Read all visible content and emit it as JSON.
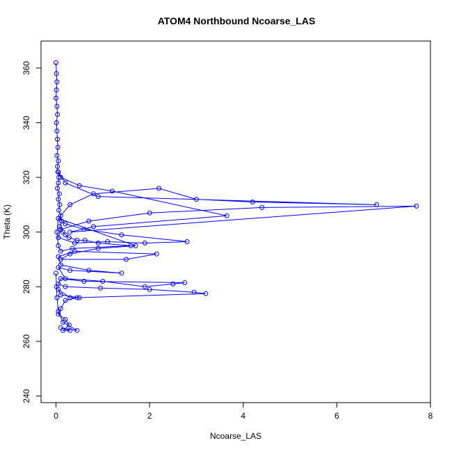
{
  "chart_data": {
    "type": "line",
    "title": "ATOM4 Northbound Ncoarse_LAS",
    "xlabel": "Ncoarse_LAS",
    "ylabel": "Theta (K)",
    "xlim": [
      -0.32,
      8.0
    ],
    "ylim": [
      237.6,
      369.9
    ],
    "xticks": [
      0,
      2,
      4,
      6,
      8
    ],
    "yticks": [
      240,
      260,
      280,
      300,
      320,
      340,
      360
    ],
    "ytick_orientation": "vertical",
    "grid": false,
    "legend": "none",
    "marker": "open-circle",
    "colors": {
      "series": "#0000ff",
      "axes": "#000000"
    },
    "series": [
      {
        "x": [
          0.0,
          0.01,
          0.02,
          0.01,
          0.0,
          0.02,
          0.03,
          0.01,
          0.02,
          0.03,
          0.04,
          0.02,
          0.05,
          0.03,
          0.04,
          0.06,
          0.05,
          0.03,
          0.07,
          0.05,
          0.08,
          0.06,
          0.1,
          0.12,
          0.08,
          0.15,
          0.2,
          0.28,
          0.45,
          0.62,
          0.9,
          1.6,
          0.35,
          0.1,
          0.05,
          0.02,
          0.05,
          0.3,
          0.8,
          2.2,
          3.0,
          4.2,
          6.85,
          0.9,
          0.2,
          0.05,
          0.1,
          0.5,
          1.2,
          3.65,
          0.8,
          0.3,
          7.7,
          4.4,
          2.0,
          0.7,
          0.1,
          0.05,
          0.4,
          1.1,
          1.9,
          2.8,
          1.4,
          0.6,
          0.2,
          0.05,
          1.7,
          0.9,
          0.3,
          0.1,
          1.5,
          2.15,
          0.4,
          0.05,
          0.1,
          0.7,
          1.4,
          0.3,
          0.05,
          0.2,
          1.0,
          1.9,
          2.5,
          2.75,
          0.6,
          0.1,
          0.05,
          0.2,
          0.95,
          2.0,
          2.95,
          3.2,
          0.5,
          0.1,
          0.05,
          0.3,
          0.45,
          0.2,
          0.1,
          0.05,
          0.2,
          0.28,
          0.15,
          0.3,
          0.1,
          0.45,
          0.15,
          0.05,
          0.02,
          0.01,
          0.0
        ],
        "y": [
          362,
          358,
          355,
          352,
          349,
          346,
          343,
          340,
          337,
          334,
          331,
          328,
          326,
          324,
          322,
          320,
          318,
          316,
          314,
          312,
          310,
          308,
          306,
          304,
          302,
          300,
          299,
          298,
          297,
          297,
          296,
          295,
          294,
          293,
          295,
          300,
          305,
          310,
          314,
          316,
          312,
          311,
          310,
          313,
          318,
          322,
          320,
          317,
          315,
          306,
          302,
          300,
          309.5,
          309,
          307,
          304,
          301,
          298,
          296,
          296.5,
          296,
          296.5,
          299,
          301,
          303,
          305,
          295,
          294,
          292,
          290,
          290,
          292,
          293,
          291,
          288,
          286,
          285,
          286,
          287,
          283,
          282,
          280,
          281,
          281.5,
          282,
          283,
          281,
          280,
          279.5,
          279,
          278,
          277.5,
          276,
          277,
          279,
          276,
          276,
          275,
          272,
          270,
          268,
          266,
          264,
          264,
          265,
          264,
          267,
          271,
          276,
          280,
          285
        ]
      }
    ]
  }
}
